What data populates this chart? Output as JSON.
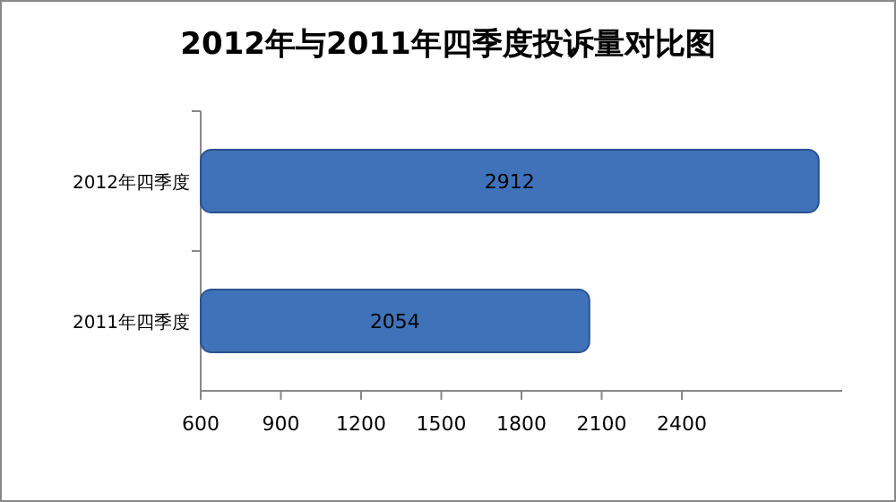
{
  "chart_data": {
    "type": "bar",
    "orientation": "horizontal",
    "title": "2012年与2011年四季度投诉量对比图",
    "categories": [
      "2012年四季度",
      "2011年四季度"
    ],
    "series": [
      {
        "color": "#3f72b8",
        "values": [
          2912,
          2054
        ]
      }
    ],
    "xlim": [
      600,
      3000
    ],
    "xticks": [
      600,
      900,
      1200,
      1500,
      1800,
      2100,
      2400
    ],
    "data_labels": true
  }
}
